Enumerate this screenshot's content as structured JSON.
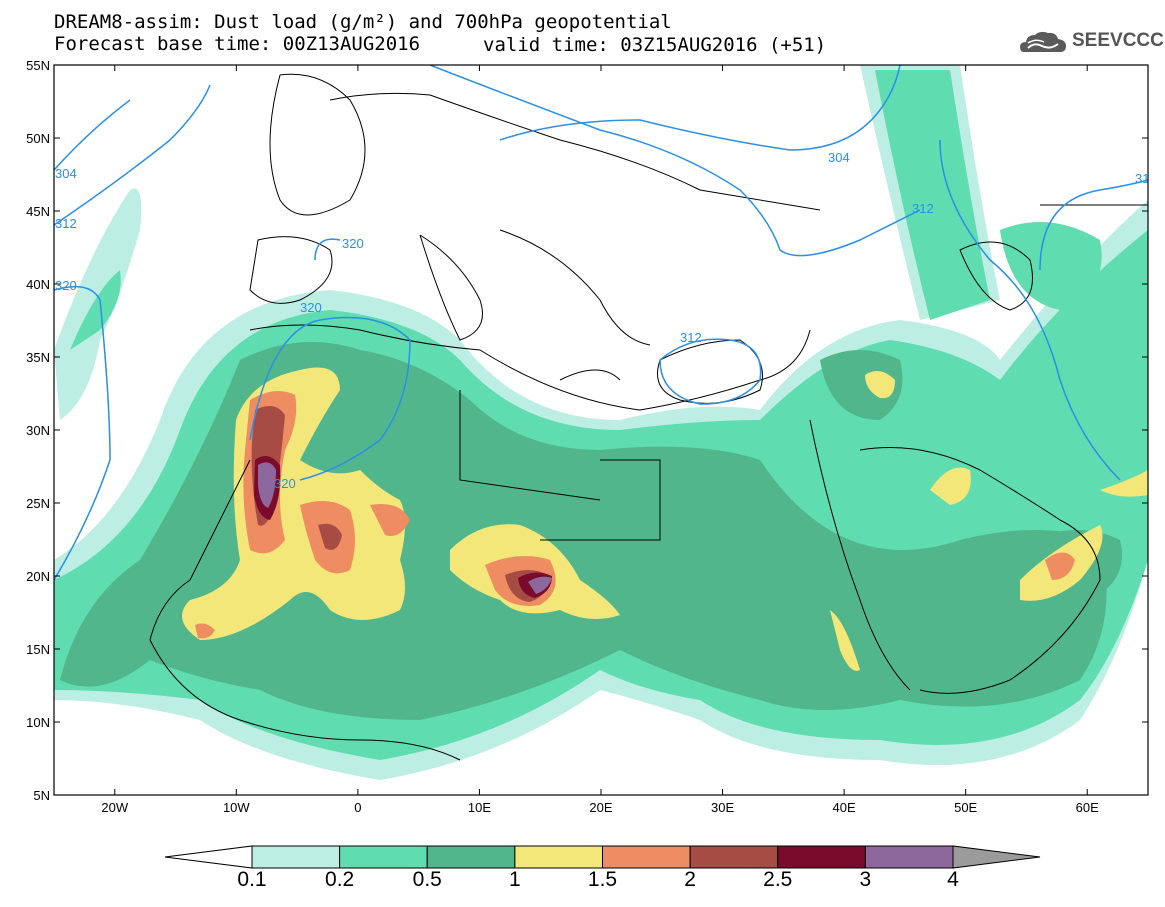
{
  "title": {
    "line1": "DREAM8-assim: Dust load (g/m²) and 700hPa geopotential",
    "line2": "Forecast base time: 00Z13AUG2016",
    "valid": "valid time: 03Z15AUG2016 (+51)"
  },
  "logo": {
    "text": "SEEVCCC",
    "icon": "cloud-logo-icon"
  },
  "axes": {
    "lat_labels": [
      "55N",
      "50N",
      "45N",
      "40N",
      "35N",
      "30N",
      "25N",
      "20N",
      "15N",
      "10N",
      "5N"
    ],
    "lon_labels": [
      "20W",
      "10W",
      "0",
      "10E",
      "20E",
      "30E",
      "40E",
      "50E",
      "60E"
    ],
    "lat_range": [
      5,
      55
    ],
    "lon_range": [
      -25,
      65
    ]
  },
  "contours": {
    "labels": [
      "304",
      "312",
      "320",
      "320",
      "320",
      "312",
      "304",
      "312",
      "31",
      "320"
    ]
  },
  "colorbar": {
    "labels": [
      "0.1",
      "0.2",
      "0.5",
      "1",
      "1.5",
      "2",
      "2.5",
      "3",
      "4"
    ],
    "colors": [
      "#ffffff",
      "#bdeee4",
      "#5fdcb0",
      "#52b68c",
      "#f3e77a",
      "#ee8d62",
      "#a64c44",
      "#7a0b2c",
      "#8c689c",
      "#9b9b9b"
    ]
  }
}
